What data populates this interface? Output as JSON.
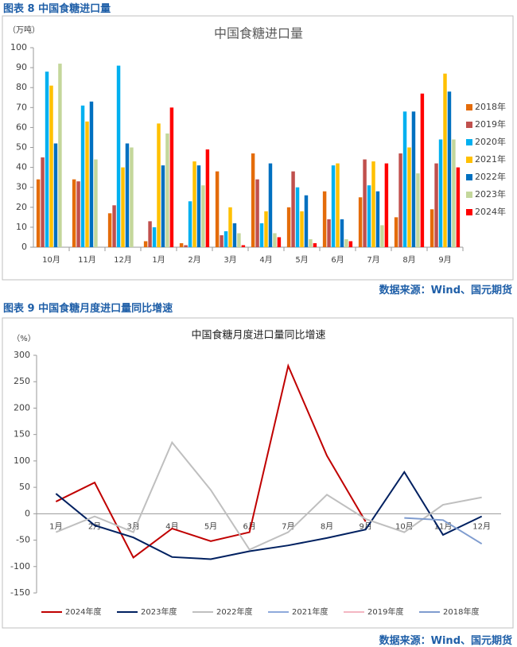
{
  "headers": [
    "图表 8  中国食糖进口量",
    "图表 9  中国食糖月度进口量同比增速"
  ],
  "sources": [
    "数据来源：Wind、国元期货",
    "数据来源：Wind、国元期货"
  ],
  "chart_data": [
    {
      "type": "bar",
      "title": "中国食糖进口量",
      "ylabel": "（万吨）",
      "categories": [
        "10月",
        "11月",
        "12月",
        "1月",
        "2月",
        "3月",
        "4月",
        "5月",
        "6月",
        "7月",
        "8月",
        "9月"
      ],
      "ylim": [
        0,
        100
      ],
      "yticks": [
        0,
        10,
        20,
        30,
        40,
        50,
        60,
        70,
        80,
        90,
        100
      ],
      "grid": false,
      "legend": "right",
      "series": [
        {
          "name": "2018年",
          "color": "#e46c0a",
          "values": [
            34,
            34,
            17,
            3,
            2,
            38,
            47,
            20,
            28,
            25,
            15,
            19
          ]
        },
        {
          "name": "2019年",
          "color": "#c0504d",
          "values": [
            45,
            33,
            21,
            13,
            1,
            6,
            34,
            38,
            14,
            44,
            47,
            42
          ]
        },
        {
          "name": "2020年",
          "color": "#00b0f0",
          "values": [
            88,
            71,
            91,
            10,
            23,
            8,
            12,
            30,
            41,
            31,
            68,
            54
          ]
        },
        {
          "name": "2021年",
          "color": "#ffc000",
          "values": [
            81,
            63,
            40,
            62,
            43,
            20,
            18,
            18,
            42,
            43,
            50,
            87
          ]
        },
        {
          "name": "2022年",
          "color": "#0070c0",
          "values": [
            52,
            73,
            52,
            41,
            41,
            12,
            42,
            26,
            14,
            28,
            68,
            78
          ]
        },
        {
          "name": "2023年",
          "color": "#c4d79b",
          "values": [
            92,
            44,
            50,
            57,
            31,
            7,
            7,
            4,
            4,
            11,
            37,
            54
          ]
        },
        {
          "name": "2024年",
          "color": "#ff0000",
          "values": [
            null,
            null,
            null,
            70,
            49,
            1,
            5,
            2,
            3,
            42,
            77,
            40
          ]
        }
      ]
    },
    {
      "type": "line",
      "title": "中国食糖月度进口量同比增速",
      "ylabel": "（%）",
      "categories": [
        "1月",
        "2月",
        "3月",
        "4月",
        "5月",
        "6月",
        "7月",
        "8月",
        "9月",
        "10月",
        "11月",
        "12月"
      ],
      "ylim": [
        -150,
        300
      ],
      "yticks": [
        -150,
        -100,
        -50,
        0,
        50,
        100,
        150,
        200,
        250,
        300
      ],
      "grid": false,
      "legend": "bottom",
      "series": [
        {
          "name": "2024年度",
          "color": "#c00000",
          "values": [
            23,
            59,
            -83,
            -28,
            -52,
            -35,
            280,
            110,
            -15,
            null,
            null,
            null
          ]
        },
        {
          "name": "2023年度",
          "color": "#002060",
          "values": [
            38,
            -22,
            -45,
            -82,
            -86,
            -71,
            -60,
            -46,
            -30,
            79,
            -40,
            -5
          ]
        },
        {
          "name": "2022年度",
          "color": "#bfbfbf",
          "values": [
            -35,
            -5,
            -35,
            135,
            45,
            -68,
            -35,
            36,
            -10,
            -35,
            17,
            31
          ]
        },
        {
          "name": "2021年度",
          "color": "#8eaadb",
          "values": [
            null,
            null,
            null,
            null,
            null,
            null,
            null,
            null,
            null,
            null,
            null,
            null
          ]
        },
        {
          "name": "2019年度",
          "color": "#f4b6c2",
          "values": [
            null,
            null,
            null,
            null,
            null,
            null,
            null,
            null,
            null,
            null,
            null,
            null
          ]
        },
        {
          "name": "2018年度",
          "color": "#7f9ccf",
          "values": [
            null,
            null,
            null,
            null,
            null,
            null,
            null,
            null,
            null,
            -8,
            -12,
            -57
          ]
        }
      ]
    }
  ]
}
